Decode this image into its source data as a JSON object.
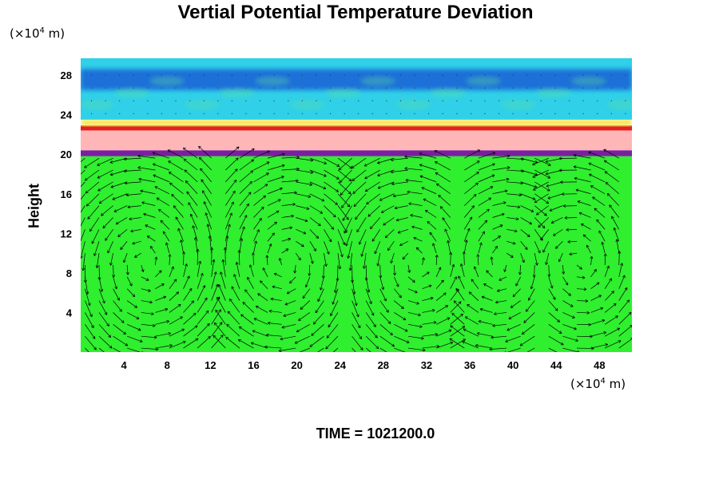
{
  "chart_data": {
    "type": "heatmap",
    "title": "Vertial Potential Temperature Deviation",
    "ylabel": "Height",
    "xunit": {
      "prefix": "(×10",
      "exp": "4",
      "suffix": " m)"
    },
    "yunit": {
      "prefix": "(×10",
      "exp": "4",
      "suffix": " m)"
    },
    "xlim": [
      0,
      51
    ],
    "ylim": [
      0,
      29.7
    ],
    "xticks": [
      4,
      8,
      12,
      16,
      20,
      24,
      28,
      32,
      36,
      40,
      44,
      48
    ],
    "yticks": [
      4,
      8,
      12,
      16,
      20,
      24,
      28
    ],
    "overlay": "velocity vectors",
    "layers": [
      {
        "name": "lower troposphere",
        "y": [
          0,
          19.8
        ],
        "color": "#2fef2f"
      },
      {
        "name": "dark purple band",
        "y": [
          19.8,
          20.4
        ],
        "color": "#7a1fa0"
      },
      {
        "name": "pink band",
        "y": [
          20.4,
          22.4
        ],
        "color": "#ffb6b6"
      },
      {
        "name": "red line",
        "y": [
          22.4,
          22.9
        ],
        "color": "#e52020"
      },
      {
        "name": "yellow fringe",
        "y": [
          22.9,
          23.5
        ],
        "color": "#f6e43a"
      },
      {
        "name": "upper layer",
        "y": [
          23.5,
          29.7
        ],
        "color": "#2fd0e8"
      },
      {
        "name": "blue core",
        "y": [
          26.5,
          28.6
        ],
        "color": "#1e6fd8"
      }
    ],
    "vortex_centers_x": [
      6,
      19,
      31,
      39,
      46
    ]
  },
  "footer": {
    "time_label": "TIME = 1021200.0"
  }
}
